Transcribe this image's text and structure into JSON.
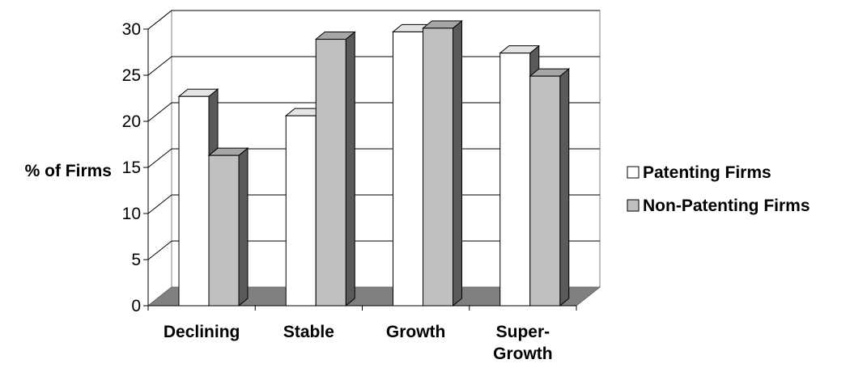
{
  "chart_data": {
    "type": "bar",
    "ylabel": "% of Firms",
    "xlabel": "",
    "ylim": [
      0,
      30
    ],
    "yticks": [
      0,
      5,
      10,
      15,
      20,
      25,
      30
    ],
    "grid": true,
    "legend_position": "right",
    "categories": [
      [
        "Declining"
      ],
      [
        "Stable"
      ],
      [
        "Growth"
      ],
      [
        "Super-",
        "Growth"
      ]
    ],
    "series": [
      {
        "name": "Patenting Firms",
        "color": "#ffffff",
        "values": [
          22.7,
          20.6,
          29.7,
          27.4
        ]
      },
      {
        "name": "Non-Patenting Firms",
        "color": "#c0c0c0",
        "values": [
          16.3,
          28.9,
          30.1,
          24.9
        ]
      }
    ],
    "colors": {
      "floor": "#808080",
      "gridline": "#000000",
      "bar_side": "#5a5a5a",
      "bar_top_white": "#e4e4e4",
      "bar_top_gray": "#a6a6a6"
    }
  }
}
